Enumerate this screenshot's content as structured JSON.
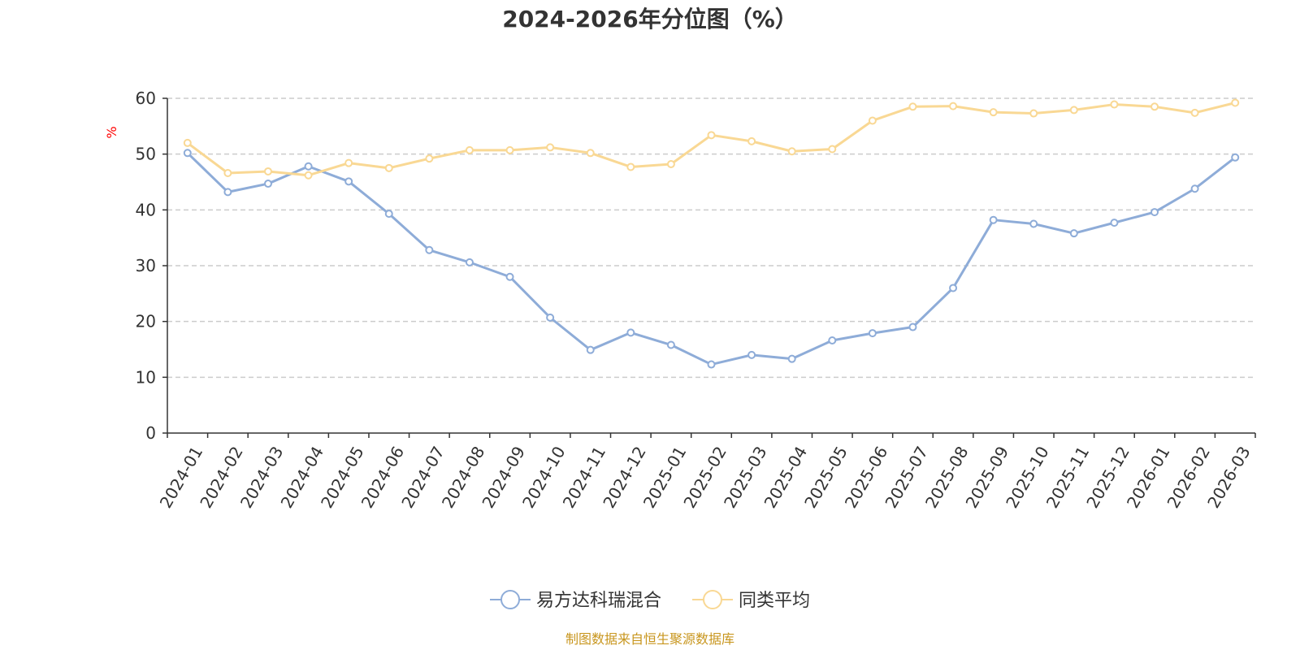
{
  "chart_data": {
    "type": "line",
    "title": "2024-2026年分位图（%）",
    "ylabel": "%",
    "xlabel": "",
    "ylim": [
      0,
      60
    ],
    "yticks": [
      0,
      10,
      20,
      30,
      40,
      50,
      60
    ],
    "grid": true,
    "legend_position": "bottom-center",
    "categories": [
      "2024-01",
      "2024-02",
      "2024-03",
      "2024-04",
      "2024-05",
      "2024-06",
      "2024-07",
      "2024-08",
      "2024-09",
      "2024-10",
      "2024-11",
      "2024-12",
      "2025-01",
      "2025-02",
      "2025-03",
      "2025-04",
      "2025-05",
      "2025-06",
      "2025-07",
      "2025-08",
      "2025-09",
      "2025-10",
      "2025-11",
      "2025-12",
      "2026-01",
      "2026-02",
      "2026-03"
    ],
    "series": [
      {
        "name": "易方达科瑞混合",
        "color": "#8eacd8",
        "values": [
          50.2,
          43.2,
          44.7,
          47.8,
          45.1,
          39.3,
          32.8,
          30.6,
          28.0,
          20.7,
          14.9,
          18.0,
          15.8,
          12.3,
          14.0,
          13.3,
          16.6,
          17.9,
          19.0,
          26.0,
          38.2,
          37.5,
          35.8,
          37.7,
          39.6,
          43.8,
          49.4
        ]
      },
      {
        "name": "同类平均",
        "color": "#f9d894",
        "values": [
          52.0,
          46.6,
          46.9,
          46.2,
          48.4,
          47.5,
          49.2,
          50.7,
          50.7,
          51.2,
          50.2,
          47.7,
          48.2,
          53.4,
          52.3,
          50.5,
          50.9,
          56.0,
          58.5,
          58.6,
          57.5,
          57.3,
          57.9,
          58.9,
          58.5,
          57.4,
          59.2
        ]
      }
    ]
  },
  "source_text": "制图数据来自恒生聚源数据库"
}
